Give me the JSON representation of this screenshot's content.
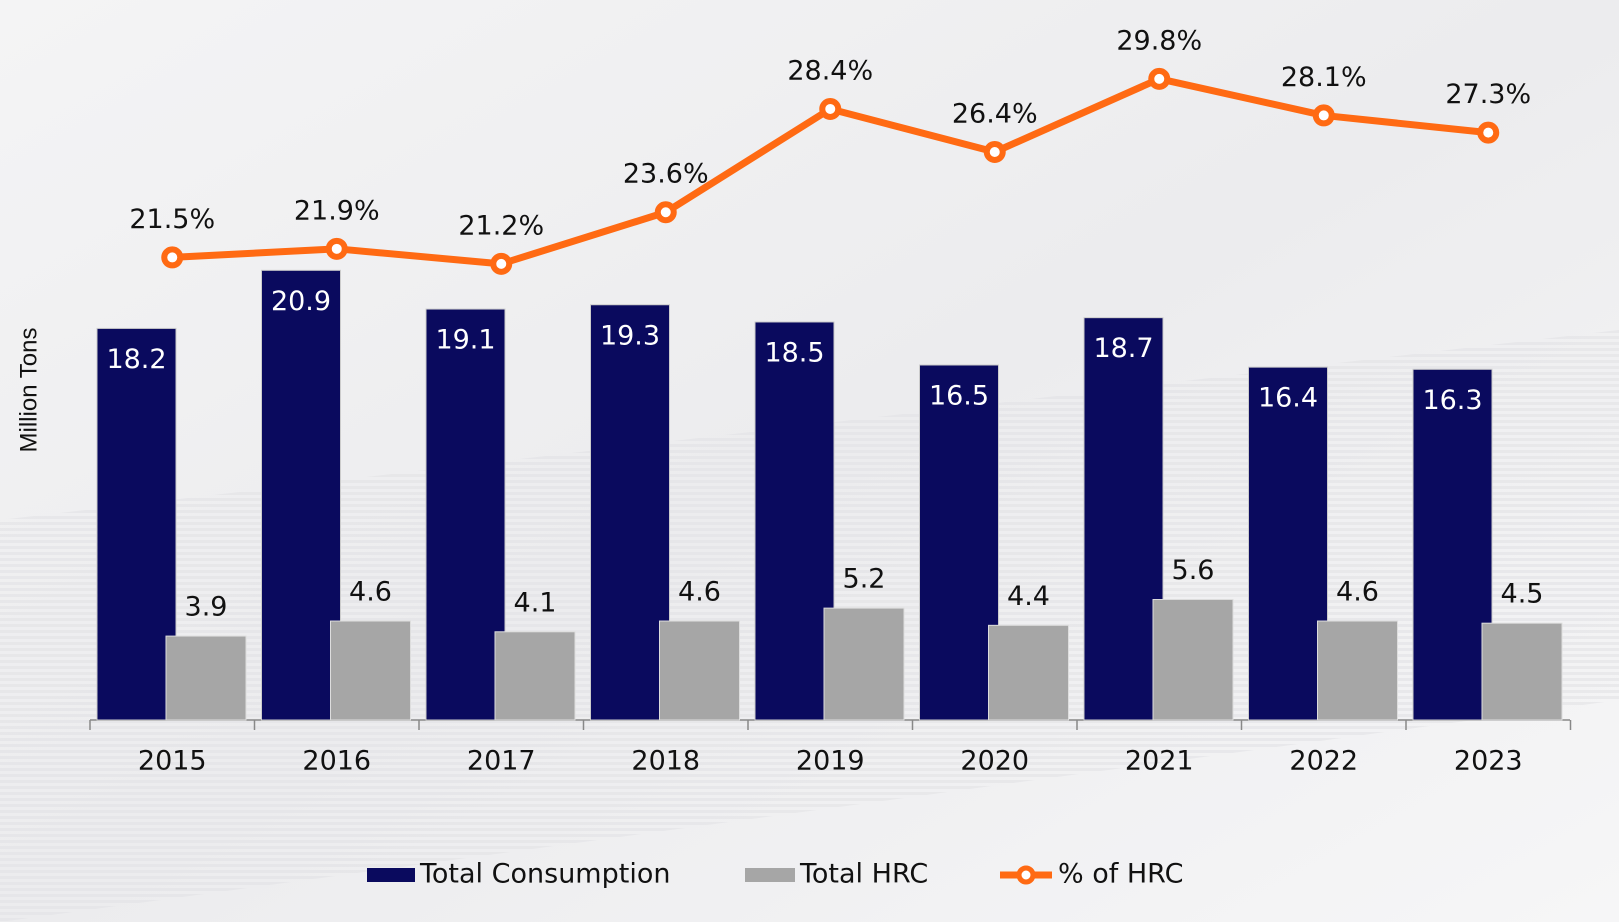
{
  "chart_data": {
    "type": "bar_line",
    "y_axis_label": "Million Tons",
    "categories": [
      "2015",
      "2016",
      "2017",
      "2018",
      "2019",
      "2020",
      "2021",
      "2022",
      "2023"
    ],
    "ylim": [
      0,
      33
    ],
    "y2lim": [
      0,
      33
    ],
    "legend": "bottom",
    "series": [
      {
        "name": "Total Consumption",
        "color": "#0a0a5e",
        "values": [
          18.2,
          20.9,
          19.1,
          19.3,
          18.5,
          16.5,
          18.7,
          16.4,
          16.3
        ]
      },
      {
        "name": "Total HRC",
        "color": "#a6a6a6",
        "values": [
          3.9,
          4.6,
          4.1,
          4.6,
          5.2,
          4.4,
          5.6,
          4.6,
          4.5
        ]
      },
      {
        "name": "% of HRC",
        "color": "#ff6a13",
        "axis": "y2",
        "values": [
          21.5,
          21.9,
          21.2,
          23.6,
          28.4,
          26.4,
          29.8,
          28.1,
          27.3
        ],
        "value_labels": [
          "21.5%",
          "21.9%",
          "21.2%",
          "23.6%",
          "28.4%",
          "26.4%",
          "29.8%",
          "28.1%",
          "27.3%"
        ]
      }
    ]
  }
}
